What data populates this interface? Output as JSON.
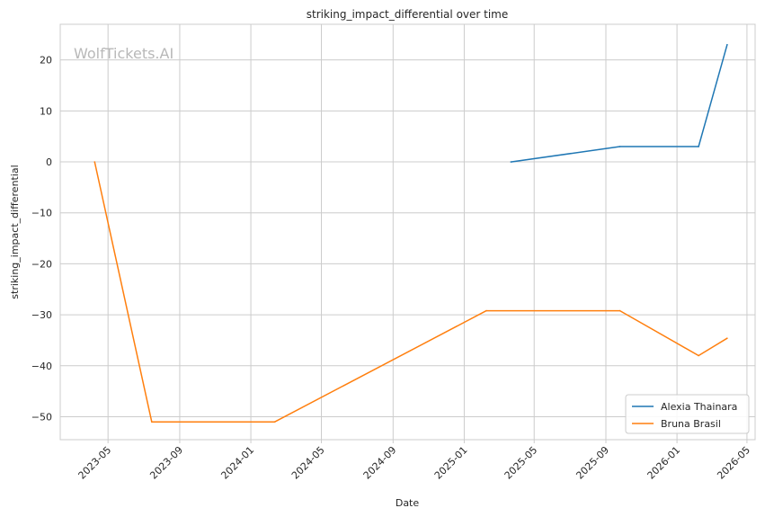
{
  "watermark": "WolfTickets.AI",
  "chart_data": {
    "type": "line",
    "title": "striking_impact_differential over time",
    "xlabel": "Date",
    "ylabel": "striking_impact_differential",
    "xlim": [
      "2023-02-08",
      "2026-05-15"
    ],
    "ylim": [
      -54.5,
      27
    ],
    "x_ticks": [
      "2023-05",
      "2023-09",
      "2024-01",
      "2024-05",
      "2024-09",
      "2025-01",
      "2025-05",
      "2025-09",
      "2026-01",
      "2026-05"
    ],
    "y_ticks": [
      20,
      10,
      0,
      -10,
      -20,
      -30,
      -40,
      -50
    ],
    "y_tick_labels": [
      "20",
      "10",
      "0",
      "−10",
      "−20",
      "−30",
      "−40",
      "−50"
    ],
    "grid": true,
    "legend_position": "lower-right",
    "series": [
      {
        "name": "Alexia Thainara",
        "color": "#1f77b4",
        "points": [
          {
            "x": "2025-03-22",
            "y": 0
          },
          {
            "x": "2025-09-25",
            "y": 3
          },
          {
            "x": "2026-02-07",
            "y": 3
          },
          {
            "x": "2026-03-28",
            "y": 23
          }
        ]
      },
      {
        "name": "Bruna Brasil",
        "color": "#ff7f0e",
        "points": [
          {
            "x": "2023-04-08",
            "y": 0
          },
          {
            "x": "2023-07-15",
            "y": -51
          },
          {
            "x": "2024-02-11",
            "y": -51
          },
          {
            "x": "2025-02-08",
            "y": -29.2
          },
          {
            "x": "2025-09-25",
            "y": -29.2
          },
          {
            "x": "2026-02-07",
            "y": -38
          },
          {
            "x": "2026-03-28",
            "y": -34.6
          }
        ]
      }
    ]
  }
}
